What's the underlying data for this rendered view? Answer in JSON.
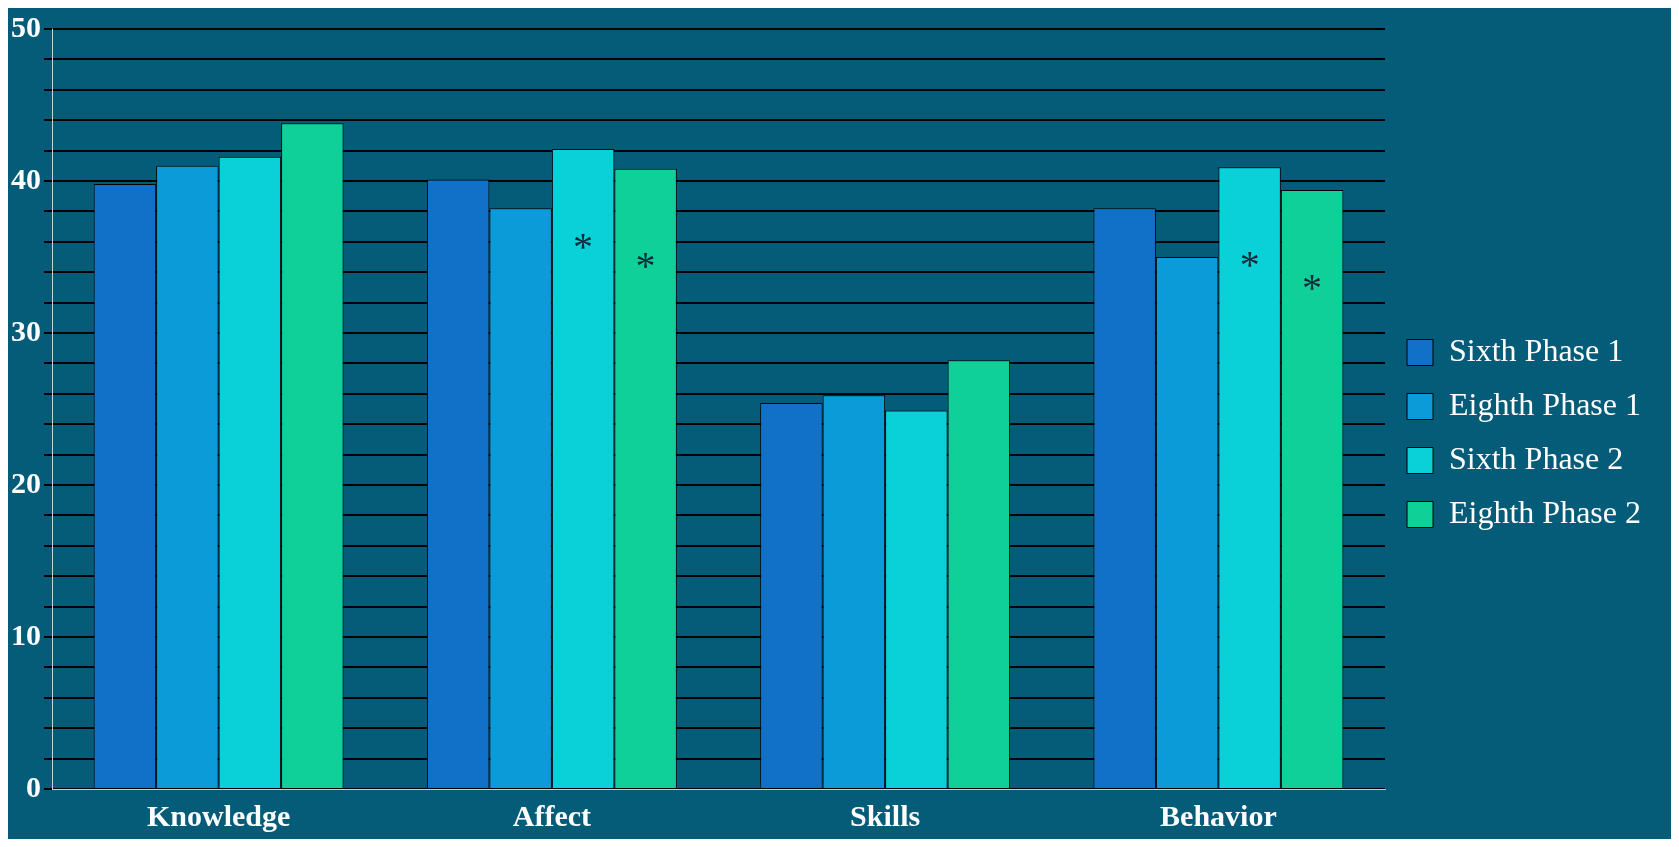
{
  "chart_data": {
    "type": "bar",
    "categories": [
      "Knowledge",
      "Affect",
      "Skills",
      "Behavior"
    ],
    "series": [
      {
        "name": "Sixth Phase 1",
        "color": "#1170c8",
        "values": [
          39.8,
          40.1,
          25.4,
          38.2
        ]
      },
      {
        "name": "Eighth Phase 1",
        "color": "#0a9bd8",
        "values": [
          41.0,
          38.2,
          25.9,
          35.0
        ]
      },
      {
        "name": "Sixth Phase 2",
        "color": "#0ad0d8",
        "values": [
          41.6,
          42.1,
          24.9,
          40.9
        ],
        "value_labels": [
          null,
          "*",
          null,
          "*"
        ]
      },
      {
        "name": "Eighth Phase 2",
        "color": "#10d09a",
        "values": [
          43.8,
          40.8,
          28.2,
          39.4
        ],
        "value_labels": [
          null,
          "*",
          null,
          "*"
        ]
      }
    ],
    "ylim": [
      0,
      50
    ],
    "yticks": [
      0,
      {
        "value": 2,
        "label": null
      },
      {
        "value": 4,
        "label": null
      },
      {
        "value": 6,
        "label": null
      },
      {
        "value": 8,
        "label": null
      },
      10,
      {
        "value": 12,
        "label": null
      },
      {
        "value": 14,
        "label": null
      },
      {
        "value": 16,
        "label": null
      },
      {
        "value": 18,
        "label": null
      },
      20,
      {
        "value": 22,
        "label": null
      },
      {
        "value": 24,
        "label": null
      },
      {
        "value": 26,
        "label": null
      },
      {
        "value": 28,
        "label": null
      },
      30,
      {
        "value": 32,
        "label": null
      },
      {
        "value": 34,
        "label": null
      },
      {
        "value": 36,
        "label": null
      },
      {
        "value": 38,
        "label": null
      },
      40,
      {
        "value": 42,
        "label": null
      },
      {
        "value": 44,
        "label": null
      },
      {
        "value": 46,
        "label": null
      },
      {
        "value": 48,
        "label": null
      },
      50
    ],
    "grid": "y",
    "legend": "right"
  }
}
